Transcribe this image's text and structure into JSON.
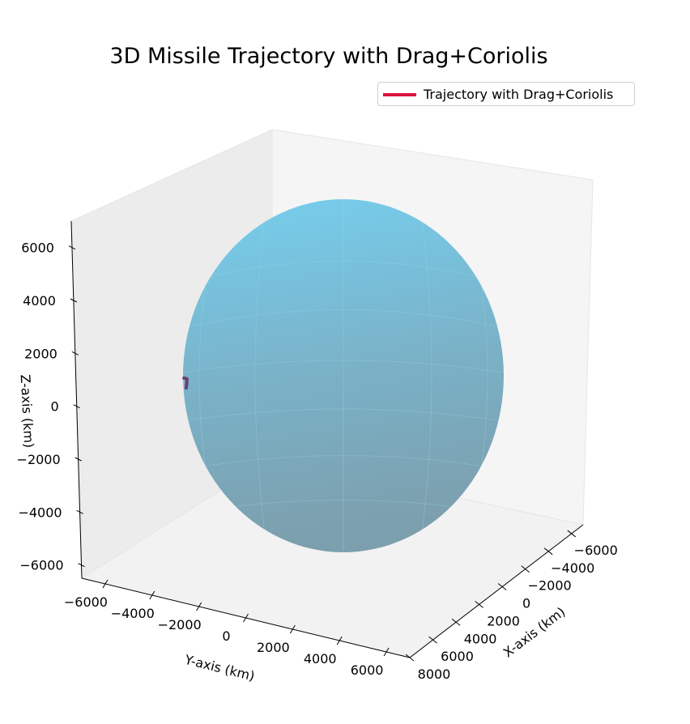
{
  "chart_data": {
    "type": "3d-line",
    "title": "3D Missile Trajectory with Drag+Coriolis",
    "xlabel": "X-axis (km)",
    "ylabel": "Y-axis (km)",
    "zlabel": "Z-axis (km)",
    "xlim": [
      -7000,
      8000
    ],
    "ylim": [
      -7000,
      7000
    ],
    "zlim": [
      -6500,
      7000
    ],
    "x_ticks": [
      "−6000",
      "−4000",
      "−2000",
      "0",
      "2000",
      "4000",
      "6000",
      "8000"
    ],
    "y_ticks": [
      "−6000",
      "−4000",
      "−2000",
      "0",
      "2000",
      "4000",
      "6000"
    ],
    "z_ticks": [
      "6000",
      "4000",
      "2000",
      "0",
      "−2000",
      "−4000",
      "−6000"
    ],
    "sphere": {
      "radius_km": 6371,
      "color": "#87ceeb"
    },
    "series": [
      {
        "name": "Trajectory with Drag+Coriolis",
        "color": "#dc143c",
        "points": [
          [
            1180,
            -6210,
            -1420
          ],
          [
            1060,
            -6240,
            -1290
          ],
          [
            960,
            -6275,
            -1160
          ],
          [
            1050,
            -6300,
            -1120
          ],
          [
            1130,
            -6320,
            -1090
          ]
        ]
      }
    ],
    "legend": {
      "position": "top-right"
    },
    "grid": false
  }
}
